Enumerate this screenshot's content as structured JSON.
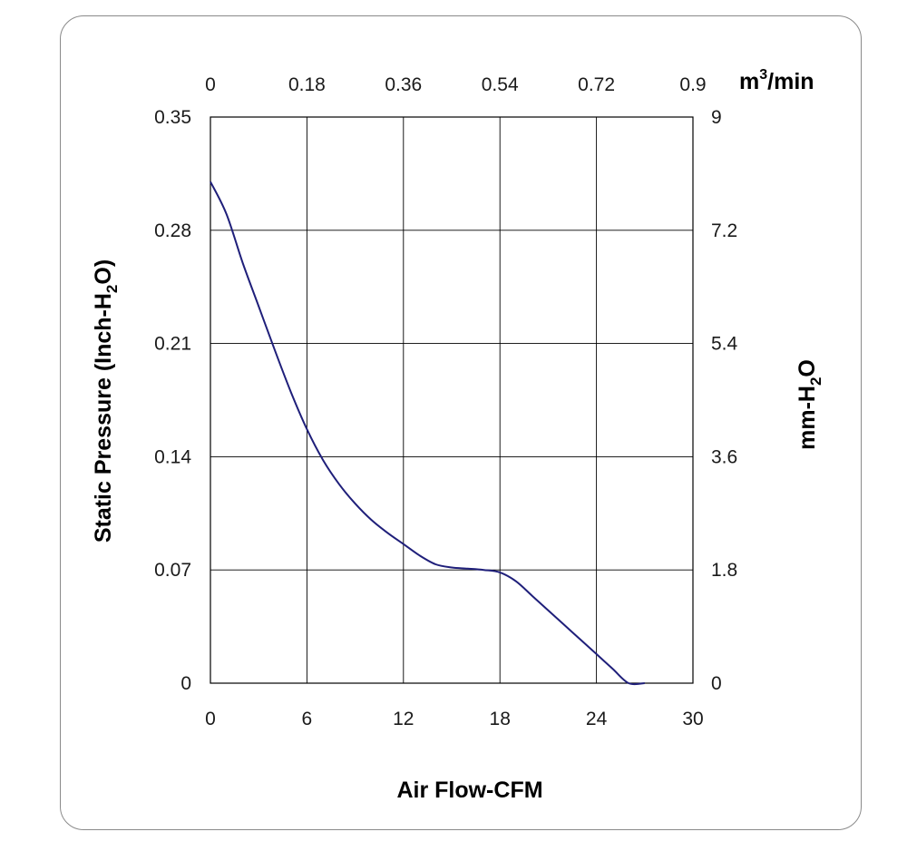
{
  "chart_data": {
    "type": "line",
    "title": "",
    "xlabel": "Air Flow-CFM",
    "ylabel_left": {
      "main": "Static Pressure (Inch-H",
      "sub": "2",
      "end": "O)"
    },
    "ylabel_right": {
      "main": "mm-H",
      "sub": "2",
      "end": "O"
    },
    "x2label": {
      "main": "m",
      "sup": "3",
      "end": "/min"
    },
    "xlim": [
      0,
      30
    ],
    "ylim": [
      0,
      0.35
    ],
    "x_ticks": [
      "0",
      "6",
      "12",
      "18",
      "24",
      "30"
    ],
    "y_ticks": [
      "0",
      "0.07",
      "0.14",
      "0.21",
      "0.28",
      "0.35"
    ],
    "x2_ticks": [
      "0",
      "0.18",
      "0.36",
      "0.54",
      "0.72",
      "0.9"
    ],
    "y2_ticks": [
      "0",
      "1.8",
      "3.6",
      "5.4",
      "7.2",
      "9"
    ],
    "grid": true,
    "line_color": "#1f1f7a",
    "series": [
      {
        "x": [
          0,
          1,
          2,
          3,
          4,
          5,
          6,
          7,
          8,
          9,
          10,
          11,
          12,
          13,
          14,
          15,
          16,
          17,
          18,
          19,
          20,
          21,
          22,
          23,
          24,
          25,
          26,
          27
        ],
        "values": [
          0.31,
          0.29,
          0.26,
          0.233,
          0.206,
          0.18,
          0.157,
          0.138,
          0.123,
          0.111,
          0.101,
          0.093,
          0.086,
          0.079,
          0.0735,
          0.0715,
          0.0708,
          0.07,
          0.0685,
          0.063,
          0.054,
          0.045,
          0.036,
          0.027,
          0.018,
          0.009,
          0.0,
          0.0
        ]
      }
    ]
  }
}
